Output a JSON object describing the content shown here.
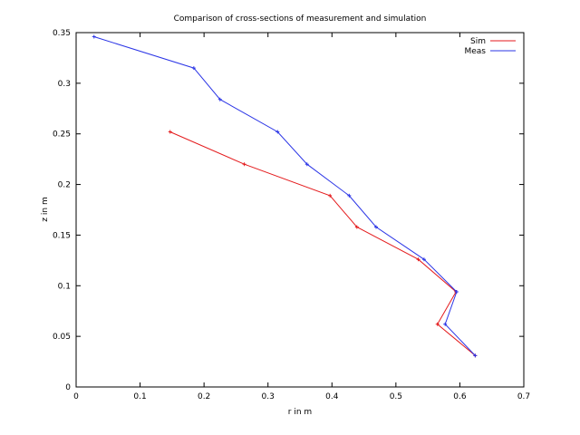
{
  "chart_data": {
    "type": "line",
    "title": "Comparison of cross-sections of measurement and simulation",
    "xlabel": "r in m",
    "ylabel": "z in m",
    "xlim": [
      0,
      0.7
    ],
    "ylim": [
      0,
      0.35
    ],
    "xticks": [
      0,
      0.1,
      0.2,
      0.3,
      0.4,
      0.5,
      0.6,
      0.7
    ],
    "xtick_labels": [
      "0",
      "0.1",
      "0.2",
      "0.3",
      "0.4",
      "0.5",
      "0.6",
      "0.7"
    ],
    "yticks": [
      0,
      0.05,
      0.1,
      0.15,
      0.2,
      0.25,
      0.3,
      0.35
    ],
    "ytick_labels": [
      "0",
      "0.05",
      "0.1",
      "0.15",
      "0.2",
      "0.25",
      "0.3",
      "0.35"
    ],
    "grid": false,
    "legend_position": "top-right",
    "series": [
      {
        "name": "Sim",
        "color": "#e41a1c",
        "x": [
          0.147,
          0.263,
          0.397,
          0.439,
          0.535,
          0.594,
          0.565,
          0.624
        ],
        "y": [
          0.252,
          0.22,
          0.189,
          0.158,
          0.126,
          0.094,
          0.062,
          0.031
        ]
      },
      {
        "name": "Meas",
        "color": "#2b35e6",
        "x": [
          0.028,
          0.184,
          0.225,
          0.315,
          0.361,
          0.427,
          0.469,
          0.544,
          0.595,
          0.577,
          0.624
        ],
        "y": [
          0.346,
          0.315,
          0.284,
          0.252,
          0.22,
          0.189,
          0.158,
          0.126,
          0.094,
          0.062,
          0.031
        ]
      }
    ]
  }
}
